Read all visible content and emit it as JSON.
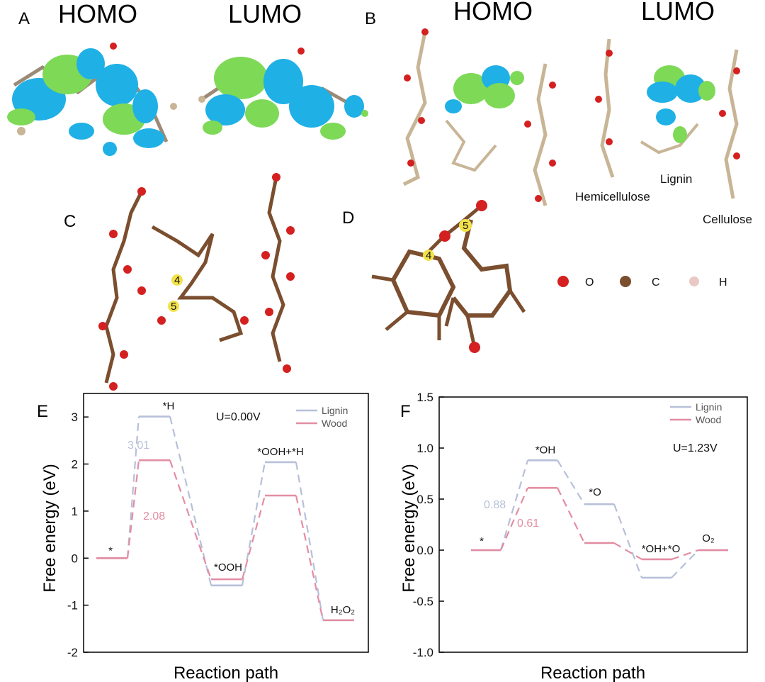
{
  "panel_labels": {
    "a": "A",
    "b": "B",
    "c": "C",
    "d": "D",
    "e": "E",
    "f": "F"
  },
  "panel_a": {
    "homo": "HOMO",
    "lumo": "LUMO"
  },
  "panel_b": {
    "homo": "HOMO",
    "lumo": "LUMO",
    "hemicellulose": "Hemicellulose",
    "lignin": "Lignin",
    "cellulose": "Cellulose"
  },
  "panel_c": {
    "atom_label_4": "4",
    "atom_label_5": "5"
  },
  "panel_d": {
    "atom_label_4": "4",
    "atom_label_5": "5"
  },
  "atom_legend": [
    {
      "label": "O",
      "color": "#d42020"
    },
    {
      "label": "C",
      "color": "#7a4e2e"
    },
    {
      "label": "H",
      "color": "#e8c9c6"
    }
  ],
  "colors": {
    "lignin": "#b7c0d9",
    "wood": "#e38da3",
    "orbital_blue": "#1fb0e6",
    "orbital_green": "#7ed957",
    "carbon": "#8a6a4a",
    "oxygen": "#d42020",
    "hydrogen": "#f2e6e4"
  },
  "chart_data": [
    {
      "type": "line",
      "panel": "E",
      "annotation": "U=0.00V",
      "xlabel": "Reaction path",
      "ylabel": "Free energy (eV)",
      "ylim": [
        -2,
        3.5
      ],
      "yticks": [
        "-2",
        "-1",
        "0",
        "1",
        "2",
        "3"
      ],
      "legend_position": "top-right",
      "states": [
        "*",
        "*H",
        "*OOH",
        "*OOH+*H",
        "H₂O₂"
      ],
      "series": [
        {
          "name": "Lignin",
          "values": [
            0,
            3.01,
            -0.58,
            2.04,
            -1.32
          ]
        },
        {
          "name": "Wood",
          "values": [
            0,
            2.08,
            -0.45,
            1.33,
            -1.32
          ]
        }
      ],
      "value_labels": [
        {
          "series": "Lignin",
          "text": "3.01"
        },
        {
          "series": "Wood",
          "text": "2.08"
        }
      ]
    },
    {
      "type": "line",
      "panel": "F",
      "annotation": "U=1.23V",
      "xlabel": "Reaction path",
      "ylabel": "Free energy (eV)",
      "ylim": [
        -1.0,
        1.5
      ],
      "yticks": [
        "-1.0",
        "-0.5",
        "0.0",
        "0.5",
        "1.0",
        "1.5"
      ],
      "legend_position": "top-right",
      "states": [
        "*",
        "*OH",
        "*O",
        "*OH+*O",
        "O₂"
      ],
      "series": [
        {
          "name": "Lignin",
          "values": [
            0,
            0.88,
            0.45,
            -0.27,
            0
          ]
        },
        {
          "name": "Wood",
          "values": [
            0,
            0.61,
            0.07,
            -0.09,
            0
          ]
        }
      ],
      "value_labels": [
        {
          "series": "Lignin",
          "text": "0.88"
        },
        {
          "series": "Wood",
          "text": "0.61"
        }
      ]
    }
  ]
}
